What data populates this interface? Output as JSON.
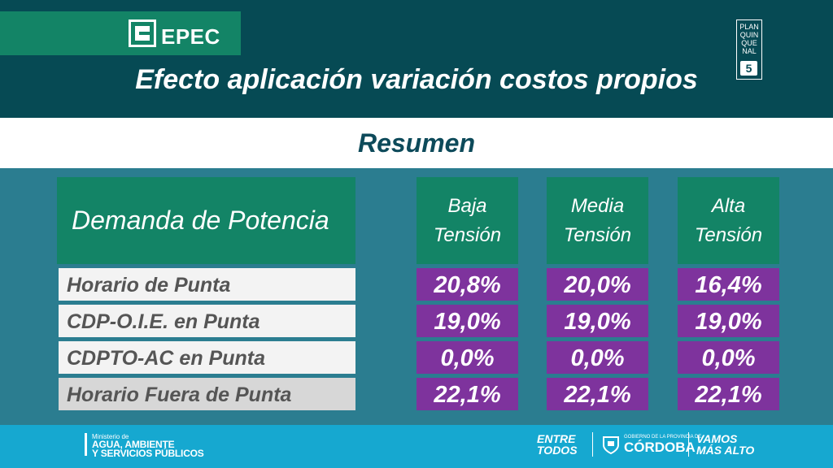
{
  "header": {
    "logo_text": "EPEC",
    "title": "Efecto aplicación variación costos propios",
    "badge": {
      "lines": [
        "PLAN",
        "QUIN",
        "QUE",
        "NAL"
      ],
      "number": "5"
    }
  },
  "subtitle": "Resumen",
  "table": {
    "row_header": "Demanda de Potencia",
    "columns": [
      {
        "line1": "Baja",
        "line2": "Tensión"
      },
      {
        "line1": "Media",
        "line2": "Tensión"
      },
      {
        "line1": "Alta",
        "line2": "Tensión"
      }
    ],
    "rows": [
      {
        "label": "Horario de Punta",
        "values": [
          "20,8%",
          "20,0%",
          "16,4%"
        ]
      },
      {
        "label": "CDP-O.I.E. en Punta",
        "values": [
          "19,0%",
          "19,0%",
          "19,0%"
        ]
      },
      {
        "label": "CDPTO-AC en Punta",
        "values": [
          "0,0%",
          "0,0%",
          "0,0%"
        ]
      },
      {
        "label": "Horario Fuera de Punta",
        "values": [
          "22,1%",
          "22,1%",
          "22,1%"
        ]
      }
    ]
  },
  "footer": {
    "ministry_small": "Ministerio de",
    "ministry_line1": "AGUA, AMBIENTE",
    "ministry_line2": "Y SERVICIOS PÚBLICOS",
    "entre_line1": "ENTRE",
    "entre_line2": "TODOS",
    "gov_small": "GOBIERNO DE LA PROVINCIA DE",
    "gov_big": "CÓRDOBA",
    "vamos_line1": "VAMOS",
    "vamos_line2": "MÁS ALTO"
  },
  "colors": {
    "header_bg": "#064a54",
    "logo_bar": "#138466",
    "table_header": "#138466",
    "value_cell": "#7e339d",
    "main_bg": "#2b7d90",
    "footer_bg": "#16a8d0"
  }
}
